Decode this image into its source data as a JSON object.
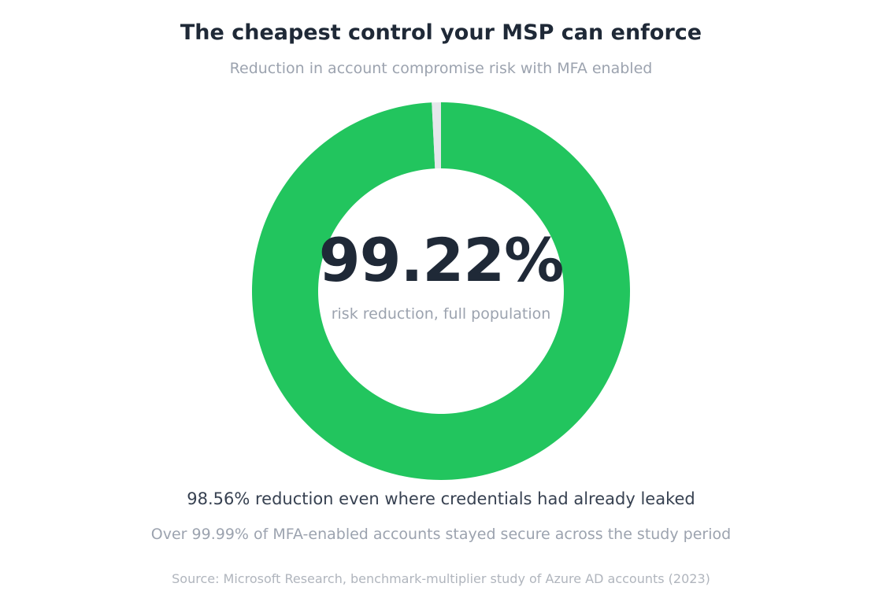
{
  "chart_data": {
    "type": "pie",
    "title": "The cheapest control your MSP can enforce",
    "subtitle": "Reduction in account compromise risk with MFA enabled",
    "slices": [
      {
        "label": "risk reduction, full population",
        "value": 99.22,
        "color": "#22c55e"
      },
      {
        "label": "",
        "value": 0.78,
        "color": "#e5e7eb"
      }
    ],
    "center_value": "99.22%",
    "center_label": "risk reduction, full population",
    "notes": [
      "98.56% reduction even where credentials had already leaked",
      "Over 99.99% of MFA-enabled accounts stayed secure across the study period"
    ],
    "source": "Source: Microsoft Research, benchmark-multiplier study of Azure AD accounts (2023)"
  }
}
